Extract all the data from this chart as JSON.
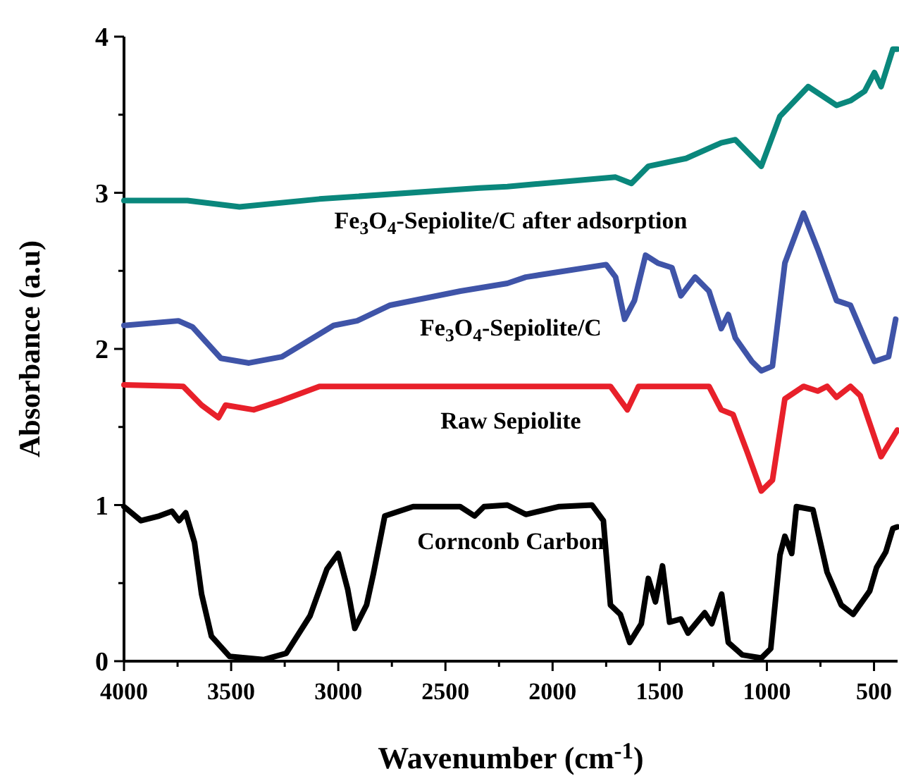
{
  "chart_data": {
    "type": "line",
    "xlabel": "Wavenumber (cm$^{-1}$)",
    "ylabel": "Absorbance (a.u)",
    "xlim": [
      4000,
      390
    ],
    "ylim": [
      0,
      4
    ],
    "xticks": [
      4000,
      {
        "value": 3750,
        "label": null
      },
      3500,
      {
        "value": 3250,
        "label": null
      },
      3000,
      {
        "value": 2750,
        "label": null
      },
      2500,
      {
        "value": 2250,
        "label": null
      },
      2000,
      {
        "value": 1750,
        "label": null
      },
      1500,
      {
        "value": 1250,
        "label": null
      },
      1000,
      {
        "value": 750,
        "label": null
      },
      500
    ],
    "yticks": [
      0,
      {
        "value": 0.5,
        "label": null
      },
      1,
      {
        "value": 1.5,
        "label": null
      },
      2,
      {
        "value": 2.5,
        "label": null
      },
      3,
      {
        "value": 3.5,
        "label": null
      },
      4
    ],
    "grid": false,
    "marker": "none",
    "line_style": "solid",
    "series": [
      {
        "name": "Fe$_{3}$O$_{4}$-Sepiolite/C after adsorption",
        "color": "#0a877c",
        "x": [
          4000,
          3704,
          3461,
          3088,
          2342,
          2211,
          1706,
          1632,
          1553,
          1377,
          1213,
          1147,
          1026,
          939,
          807,
          675,
          610,
          544,
          498,
          467,
          412,
          391
        ],
        "values": [
          2.95,
          2.95,
          2.91,
          2.96,
          3.03,
          3.04,
          3.1,
          3.06,
          3.17,
          3.22,
          3.32,
          3.34,
          3.17,
          3.49,
          3.68,
          3.56,
          3.59,
          3.65,
          3.77,
          3.68,
          3.92,
          3.92
        ]
      },
      {
        "name": "Fe$_{3}$O$_{4}$-Sepiolite/C",
        "color": "#3f54a8",
        "x": [
          4000,
          3746,
          3680,
          3548,
          3417,
          3263,
          3022,
          2912,
          2758,
          2430,
          2211,
          2125,
          1750,
          1706,
          1664,
          1618,
          1566,
          1509,
          1443,
          1401,
          1335,
          1270,
          1213,
          1180,
          1147,
          1070,
          1026,
          974,
          916,
          829,
          763,
          675,
          610,
          498,
          432,
          399
        ],
        "values": [
          2.15,
          2.18,
          2.14,
          1.94,
          1.91,
          1.95,
          2.15,
          2.18,
          2.28,
          2.37,
          2.42,
          2.46,
          2.54,
          2.46,
          2.19,
          2.31,
          2.6,
          2.55,
          2.52,
          2.34,
          2.46,
          2.37,
          2.13,
          2.22,
          2.07,
          1.92,
          1.86,
          1.89,
          2.55,
          2.87,
          2.64,
          2.31,
          2.28,
          1.92,
          1.95,
          2.19
        ]
      },
      {
        "name": "Raw Sepiolite",
        "color": "#e8202a",
        "x": [
          4000,
          3724,
          3638,
          3559,
          3526,
          3395,
          3263,
          3088,
          2211,
          1730,
          1651,
          1599,
          1270,
          1213,
          1158,
          1092,
          1026,
          974,
          916,
          829,
          763,
          719,
          675,
          610,
          564,
          467,
          391
        ],
        "values": [
          1.77,
          1.76,
          1.64,
          1.56,
          1.64,
          1.61,
          1.67,
          1.76,
          1.76,
          1.76,
          1.61,
          1.76,
          1.76,
          1.61,
          1.58,
          1.34,
          1.09,
          1.16,
          1.68,
          1.76,
          1.73,
          1.76,
          1.69,
          1.76,
          1.7,
          1.31,
          1.48
        ]
      },
      {
        "name": "Cornconb Carbon",
        "color": "#000000",
        "x": [
          4000,
          3921,
          3836,
          3776,
          3743,
          3712,
          3671,
          3638,
          3592,
          3507,
          3349,
          3243,
          3132,
          3053,
          3000,
          2956,
          2923,
          2868,
          2836,
          2783,
          2651,
          2432,
          2364,
          2320,
          2211,
          2125,
          1969,
          1816,
          1763,
          1730,
          1684,
          1640,
          1586,
          1553,
          1520,
          1487,
          1454,
          1401,
          1368,
          1290,
          1257,
          1211,
          1180,
          1114,
          1026,
          982,
          939,
          916,
          884,
          862,
          785,
          719,
          653,
          597,
          520,
          488,
          445,
          412,
          391
        ],
        "values": [
          0.99,
          0.9,
          0.93,
          0.96,
          0.9,
          0.95,
          0.76,
          0.43,
          0.16,
          0.03,
          0.01,
          0.05,
          0.29,
          0.59,
          0.69,
          0.46,
          0.21,
          0.36,
          0.56,
          0.93,
          0.99,
          0.99,
          0.93,
          0.99,
          1.0,
          0.94,
          0.99,
          1.0,
          0.9,
          0.36,
          0.3,
          0.12,
          0.24,
          0.53,
          0.38,
          0.61,
          0.25,
          0.27,
          0.18,
          0.31,
          0.24,
          0.43,
          0.12,
          0.04,
          0.02,
          0.08,
          0.68,
          0.8,
          0.69,
          0.99,
          0.97,
          0.57,
          0.36,
          0.3,
          0.45,
          0.6,
          0.7,
          0.85,
          0.86
        ]
      }
    ]
  }
}
